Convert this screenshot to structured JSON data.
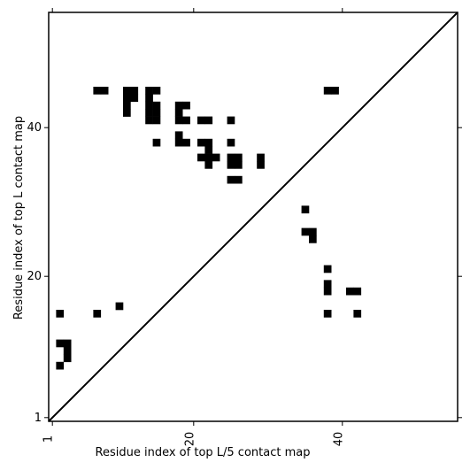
{
  "chart_data": {
    "type": "heatmap",
    "title": "",
    "xlabel": "Residue index of top L/5 contact map",
    "ylabel": "Residue index of top L contact map",
    "xlim": [
      0.5,
      55.5
    ],
    "ylim": [
      0.5,
      55.5
    ],
    "xticks": [
      {
        "value": 1,
        "label": "1"
      },
      {
        "value": 20,
        "label": "20"
      },
      {
        "value": 40,
        "label": "40"
      }
    ],
    "yticks": [
      {
        "value": 1,
        "label": "1"
      },
      {
        "value": 20,
        "label": "20"
      },
      {
        "value": 40,
        "label": "40"
      }
    ],
    "diagonal": {
      "from": [
        0.5,
        0.5
      ],
      "to": [
        55.5,
        55.5
      ]
    },
    "contact_color": "#000000",
    "background_color": "#ffffff",
    "cells_upper": [
      [
        7,
        45
      ],
      [
        8,
        45
      ],
      [
        11,
        45
      ],
      [
        12,
        45
      ],
      [
        14,
        45
      ],
      [
        15,
        45
      ],
      [
        11,
        44
      ],
      [
        12,
        44
      ],
      [
        14,
        44
      ],
      [
        38,
        45
      ],
      [
        39,
        45
      ],
      [
        11,
        43
      ],
      [
        14,
        43
      ],
      [
        15,
        43
      ],
      [
        18,
        43
      ],
      [
        19,
        43
      ],
      [
        11,
        42
      ],
      [
        14,
        42
      ],
      [
        15,
        42
      ],
      [
        18,
        42
      ],
      [
        14,
        41
      ],
      [
        15,
        41
      ],
      [
        18,
        41
      ],
      [
        19,
        41
      ],
      [
        21,
        41
      ],
      [
        22,
        41
      ],
      [
        25,
        41
      ],
      [
        18,
        39
      ],
      [
        15,
        38
      ],
      [
        18,
        38
      ],
      [
        19,
        38
      ],
      [
        21,
        38
      ],
      [
        22,
        38
      ],
      [
        25,
        38
      ],
      [
        22,
        37
      ],
      [
        21,
        36
      ],
      [
        22,
        36
      ],
      [
        23,
        36
      ],
      [
        25,
        36
      ],
      [
        26,
        36
      ],
      [
        29,
        36
      ],
      [
        22,
        35
      ],
      [
        25,
        35
      ],
      [
        26,
        35
      ],
      [
        29,
        35
      ],
      [
        25,
        33
      ],
      [
        26,
        33
      ]
    ],
    "cells_lower": [
      [
        35,
        29
      ],
      [
        35,
        26
      ],
      [
        36,
        26
      ],
      [
        36,
        25
      ],
      [
        38,
        21
      ],
      [
        38,
        19
      ],
      [
        38,
        18
      ],
      [
        41,
        18
      ],
      [
        42,
        18
      ],
      [
        10,
        16
      ],
      [
        2,
        15
      ],
      [
        7,
        15
      ],
      [
        38,
        15
      ],
      [
        42,
        15
      ],
      [
        2,
        11
      ],
      [
        3,
        11
      ],
      [
        3,
        10
      ],
      [
        3,
        9
      ],
      [
        2,
        8
      ]
    ]
  }
}
